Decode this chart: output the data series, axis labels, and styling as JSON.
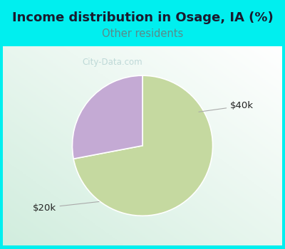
{
  "title": "Income distribution in Osage, IA (%)",
  "subtitle": "Other residents",
  "title_fontsize": 13,
  "subtitle_fontsize": 10.5,
  "title_color": "#1a1a2e",
  "subtitle_color": "#5a8a8a",
  "slices": [
    {
      "label": "$20k",
      "value": 72,
      "color": "#c5d9a0"
    },
    {
      "label": "$40k",
      "value": 28,
      "color": "#c4aad4"
    }
  ],
  "label_fontsize": 9.5,
  "background_cyan": "#00efef",
  "background_chart": "#e8f5e8",
  "startangle": 90,
  "watermark": "City-Data.com"
}
